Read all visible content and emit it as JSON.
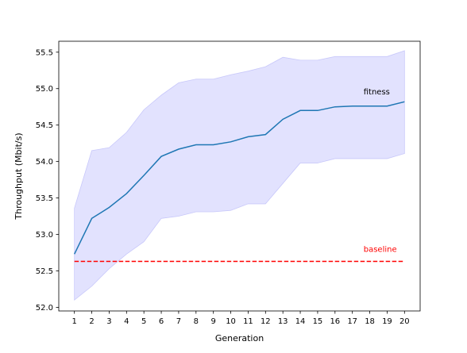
{
  "chart_data": {
    "type": "line",
    "xlabel": "Generation",
    "ylabel": "Throughput (Mbit/s)",
    "x": [
      1,
      2,
      3,
      4,
      5,
      6,
      7,
      8,
      9,
      10,
      11,
      12,
      13,
      14,
      15,
      16,
      17,
      18,
      19,
      20
    ],
    "xlim": [
      0.1,
      20.9
    ],
    "ylim": [
      51.95,
      55.65
    ],
    "yticks": [
      52.0,
      52.5,
      53.0,
      53.5,
      54.0,
      54.5,
      55.0,
      55.5
    ],
    "ytick_labels": [
      "52.0",
      "52.5",
      "53.0",
      "53.5",
      "54.0",
      "54.5",
      "55.0",
      "55.5"
    ],
    "xtick_labels": [
      "1",
      "2",
      "3",
      "4",
      "5",
      "6",
      "7",
      "8",
      "9",
      "10",
      "11",
      "12",
      "13",
      "14",
      "15",
      "16",
      "17",
      "18",
      "19",
      "20"
    ],
    "series": [
      {
        "name": "fitness",
        "color": "#1f77b4",
        "style": "solid",
        "values": [
          52.73,
          53.22,
          53.37,
          53.56,
          53.81,
          54.07,
          54.17,
          54.23,
          54.23,
          54.27,
          54.34,
          54.37,
          54.58,
          54.7,
          54.7,
          54.75,
          54.76,
          54.76,
          54.76,
          54.82
        ],
        "band_lower": [
          52.1,
          52.29,
          52.53,
          52.73,
          52.9,
          53.22,
          53.25,
          53.31,
          53.31,
          53.33,
          53.42,
          53.42,
          53.7,
          53.98,
          53.98,
          54.04,
          54.04,
          54.04,
          54.04,
          54.11
        ],
        "band_upper": [
          53.36,
          54.15,
          54.19,
          54.4,
          54.71,
          54.91,
          55.08,
          55.13,
          55.13,
          55.19,
          55.24,
          55.3,
          55.43,
          55.39,
          55.39,
          55.44,
          55.44,
          55.44,
          55.44,
          55.52
        ],
        "band_color": "#e0e0fe"
      },
      {
        "name": "baseline",
        "color": "#ff0000",
        "style": "dashed",
        "values": [
          52.63,
          52.63,
          52.63,
          52.63,
          52.63,
          52.63,
          52.63,
          52.63,
          52.63,
          52.63,
          52.63,
          52.63,
          52.63,
          52.63,
          52.63,
          52.63,
          52.63,
          52.63,
          52.63,
          52.63
        ]
      }
    ],
    "annotations": [
      {
        "text": "fitness",
        "x": 18.4,
        "y": 54.92,
        "color": "#000000"
      },
      {
        "text": "baseline",
        "x": 18.6,
        "y": 52.76,
        "color": "#ff0000"
      }
    ],
    "grid": false,
    "legend": "none"
  }
}
